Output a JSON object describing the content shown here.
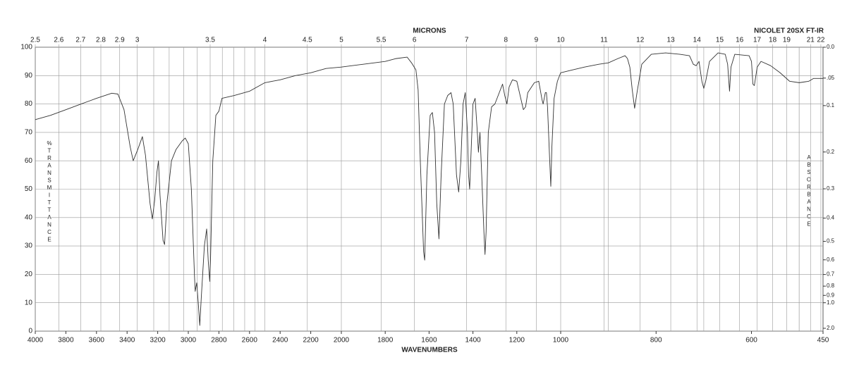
{
  "chart_data": {
    "type": "line",
    "title": "NICOLET 20SX FT-IR",
    "x_label": "WAVENUMBERS",
    "x2_label": "MICRONS",
    "y_label": "%TRANSMITTANCE",
    "y2_label": "ABSORBANCE",
    "color": "#333333",
    "grid": true,
    "xlim": [
      4000,
      450
    ],
    "xbreaks": [
      2000,
      1000
    ],
    "xticks": [
      4000,
      3800,
      3600,
      3400,
      3200,
      3000,
      2800,
      2600,
      2400,
      2200,
      2000,
      1800,
      1600,
      1400,
      1200,
      1000,
      800,
      600,
      450
    ],
    "xgrid": [
      900,
      700,
      500
    ],
    "x2ticks": [
      2.5,
      2.6,
      2.7,
      2.8,
      2.9,
      3,
      3.5,
      4,
      4.5,
      5,
      5.5,
      6,
      7,
      8,
      9,
      10,
      11,
      12,
      13,
      14,
      15,
      16,
      17,
      18,
      19,
      21,
      22
    ],
    "x2grid": [
      3.1,
      3.2,
      3.3,
      3.4,
      3.6,
      3.7,
      3.8,
      3.9,
      20
    ],
    "ylim": [
      0,
      100
    ],
    "yticks": [
      0,
      10,
      20,
      30,
      40,
      50,
      60,
      70,
      80,
      90,
      100
    ],
    "y2ticks": [
      {
        "value": 0,
        "label": "0.0"
      },
      {
        "value": 0.05,
        "label": ".05"
      },
      0.1,
      0.2,
      0.3,
      0.4,
      0.5,
      0.6,
      0.7,
      0.8,
      0.9,
      {
        "value": 1,
        "label": "1.0"
      },
      {
        "value": 2,
        "label": "2.0"
      }
    ],
    "x": [
      4000,
      3900,
      3800,
      3700,
      3600,
      3500,
      3460,
      3420,
      3380,
      3360,
      3330,
      3300,
      3280,
      3250,
      3235,
      3220,
      3205,
      3195,
      3185,
      3165,
      3155,
      3140,
      3110,
      3080,
      3040,
      3020,
      3000,
      2980,
      2960,
      2955,
      2945,
      2935,
      2925,
      2915,
      2895,
      2880,
      2870,
      2860,
      2855,
      2840,
      2820,
      2800,
      2780,
      2700,
      2600,
      2500,
      2450,
      2400,
      2300,
      2200,
      2100,
      2000,
      1900,
      1800,
      1750,
      1700,
      1680,
      1660,
      1650,
      1640,
      1625,
      1620,
      1610,
      1595,
      1585,
      1575,
      1565,
      1555,
      1545,
      1530,
      1515,
      1500,
      1490,
      1475,
      1465,
      1455,
      1445,
      1435,
      1425,
      1420,
      1415,
      1410,
      1400,
      1390,
      1380,
      1375,
      1368,
      1360,
      1350,
      1345,
      1340,
      1330,
      1315,
      1300,
      1280,
      1265,
      1255,
      1245,
      1235,
      1220,
      1200,
      1185,
      1170,
      1160,
      1150,
      1120,
      1100,
      1085,
      1080,
      1070,
      1065,
      1060,
      1050,
      1045,
      1040,
      1030,
      1015,
      1000,
      975,
      950,
      920,
      900,
      880,
      865,
      860,
      855,
      850,
      845,
      840,
      830,
      810,
      780,
      750,
      730,
      722,
      716,
      710,
      704,
      700,
      696,
      688,
      670,
      655,
      650,
      646,
      643,
      635,
      605,
      600,
      597,
      594,
      588,
      580,
      560,
      540,
      520,
      500,
      480,
      470,
      450
    ],
    "values": [
      74.5,
      76,
      78,
      80,
      82,
      83.8,
      83.5,
      78,
      65,
      60,
      64,
      68.5,
      62,
      45,
      39.5,
      46,
      56,
      60,
      48,
      32,
      30.5,
      45,
      60,
      64,
      67,
      68,
      66,
      50,
      20,
      14,
      17,
      10,
      2,
      12,
      30,
      36,
      25,
      17.5,
      25,
      60,
      76,
      77.5,
      82,
      83,
      84.5,
      87.5,
      88,
      88.5,
      90,
      91,
      92.5,
      93,
      94,
      95,
      96,
      96.5,
      94.5,
      92,
      85,
      60,
      28,
      25,
      55,
      76,
      77,
      70,
      45,
      32.5,
      55,
      80,
      83,
      84,
      80,
      55,
      49,
      60,
      80,
      84,
      70,
      55,
      50,
      60,
      80,
      82,
      70,
      63,
      70,
      55,
      35,
      27,
      35,
      70,
      79,
      80,
      84,
      87,
      83,
      80,
      86,
      88.5,
      88,
      83,
      78,
      79,
      84,
      87.5,
      88,
      81.5,
      80,
      84,
      84,
      79,
      60,
      51,
      65,
      82,
      88,
      91,
      92,
      93,
      94,
      94.5,
      96,
      97,
      96,
      93,
      85,
      78.5,
      84,
      94,
      97.5,
      98,
      97.5,
      97,
      94,
      93.5,
      95,
      88,
      85.5,
      88,
      95,
      98,
      97.5,
      94,
      84.5,
      93,
      97.5,
      97,
      95,
      87,
      86.5,
      93,
      95,
      93.5,
      91,
      88,
      87.5,
      88,
      89,
      89
    ]
  }
}
